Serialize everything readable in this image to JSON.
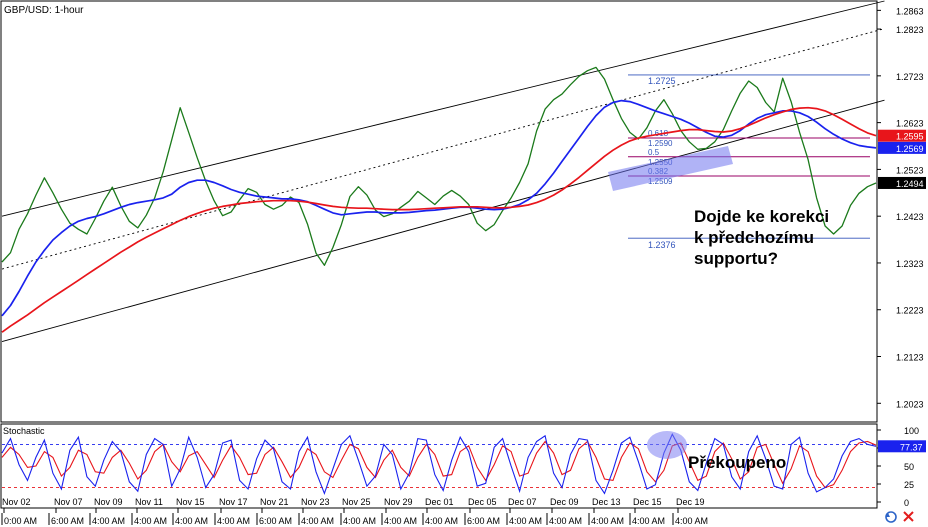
{
  "chart_data": {
    "type": "line",
    "title": "GBP/USD: 1-hour",
    "price_axis": {
      "ticks": [
        "1.2863",
        "1.2823",
        "1.2723",
        "1.2623",
        "1.2523",
        "1.2423",
        "1.2323",
        "1.2223",
        "1.2123",
        "1.2023"
      ],
      "ylim": [
        1.1983,
        1.2883
      ],
      "tags": [
        {
          "name": "ma-red",
          "value": "1.2595",
          "color": "#e8151b"
        },
        {
          "name": "ma-blue",
          "value": "1.2569",
          "color": "#1a22ee"
        },
        {
          "name": "last-price",
          "value": "1.2494",
          "color": "#000000"
        }
      ]
    },
    "series": [
      {
        "name": "price",
        "color": "#1b7a1b",
        "values": [
          1.2325,
          1.2345,
          1.2395,
          1.2428,
          1.2468,
          1.2505,
          1.2473,
          1.2438,
          1.2408,
          1.2395,
          1.2385,
          1.2418,
          1.2455,
          1.2485,
          1.2445,
          1.2412,
          1.2398,
          1.2425,
          1.2462,
          1.2518,
          1.2586,
          1.2655,
          1.2602,
          1.2548,
          1.2498,
          1.2456,
          1.2424,
          1.2432,
          1.2458,
          1.2482,
          1.2474,
          1.2448,
          1.2438,
          1.2446,
          1.2464,
          1.2452,
          1.2406,
          1.2344,
          1.2318,
          1.2356,
          1.2405,
          1.2465,
          1.2486,
          1.2468,
          1.2436,
          1.2422,
          1.2428,
          1.2442,
          1.2455,
          1.2476,
          1.2462,
          1.2448,
          1.2466,
          1.2478,
          1.2466,
          1.2448,
          1.2408,
          1.2392,
          1.2405,
          1.2435,
          1.2462,
          1.2495,
          1.2535,
          1.2605,
          1.2652,
          1.2672,
          1.2684,
          1.2704,
          1.2722,
          1.2734,
          1.2741,
          1.2716,
          1.2672,
          1.2632,
          1.2602,
          1.2588,
          1.2612,
          1.2648,
          1.2672,
          1.2642,
          1.2606,
          1.2582,
          1.2566,
          1.2568,
          1.2582,
          1.2608,
          1.2648,
          1.2686,
          1.2712,
          1.2698,
          1.2666,
          1.2646,
          1.2718,
          1.2668,
          1.2602,
          1.2544,
          1.2462,
          1.2402,
          1.2385,
          1.2402,
          1.2446,
          1.2472,
          1.2486,
          1.2494
        ]
      },
      {
        "name": "ma-blue",
        "color": "#1a22ee",
        "values": [
          1.221,
          1.2232,
          1.2262,
          1.2295,
          1.2325,
          1.235,
          1.2372,
          1.2388,
          1.2402,
          1.2412,
          1.2418,
          1.2422,
          1.2428,
          1.2435,
          1.2442,
          1.2448,
          1.2452,
          1.2455,
          1.2458,
          1.2462,
          1.247,
          1.2485,
          1.2495,
          1.25,
          1.25,
          1.2495,
          1.2488,
          1.248,
          1.2474,
          1.247,
          1.2466,
          1.2464,
          1.2462,
          1.246,
          1.246,
          1.2458,
          1.2454,
          1.2446,
          1.2438,
          1.243,
          1.2426,
          1.2428,
          1.243,
          1.2432,
          1.2432,
          1.243,
          1.243,
          1.243,
          1.2431,
          1.2433,
          1.2435,
          1.2436,
          1.2438,
          1.244,
          1.2442,
          1.2442,
          1.244,
          1.2438,
          1.2437,
          1.2438,
          1.2442,
          1.2448,
          1.2458,
          1.2472,
          1.2492,
          1.2515,
          1.254,
          1.2565,
          1.259,
          1.2615,
          1.2638,
          1.2656,
          1.2666,
          1.267,
          1.2668,
          1.2662,
          1.2655,
          1.2648,
          1.2642,
          1.2636,
          1.263,
          1.2622,
          1.2612,
          1.2602,
          1.2594,
          1.2592,
          1.2596,
          1.2606,
          1.262,
          1.2632,
          1.264,
          1.2644,
          1.2648,
          1.2648,
          1.2644,
          1.2636,
          1.2624,
          1.261,
          1.2598,
          1.2588,
          1.258,
          1.2574,
          1.2571,
          1.2569
        ]
      },
      {
        "name": "ma-red",
        "color": "#e8151b",
        "values": [
          1.2175,
          1.2188,
          1.22,
          1.2212,
          1.2225,
          1.2238,
          1.225,
          1.2262,
          1.2274,
          1.2286,
          1.2298,
          1.231,
          1.2322,
          1.2334,
          1.2346,
          1.2357,
          1.2368,
          1.2378,
          1.2387,
          1.2396,
          1.2405,
          1.2414,
          1.2422,
          1.2429,
          1.2435,
          1.244,
          1.2444,
          1.2447,
          1.245,
          1.2452,
          1.2454,
          1.2455,
          1.2456,
          1.2456,
          1.2456,
          1.2455,
          1.2453,
          1.245,
          1.2447,
          1.2444,
          1.2442,
          1.2441,
          1.244,
          1.244,
          1.2439,
          1.2438,
          1.2437,
          1.2437,
          1.2437,
          1.2438,
          1.2439,
          1.244,
          1.2441,
          1.2442,
          1.2443,
          1.2443,
          1.2443,
          1.2442,
          1.2441,
          1.2441,
          1.2442,
          1.2444,
          1.2447,
          1.2452,
          1.2459,
          1.2468,
          1.2479,
          1.2492,
          1.2506,
          1.2521,
          1.2536,
          1.2551,
          1.2564,
          1.2575,
          1.2584,
          1.259,
          1.2594,
          1.2597,
          1.26,
          1.2603,
          1.2606,
          1.2608,
          1.2608,
          1.2606,
          1.2604,
          1.2603,
          1.2605,
          1.261,
          1.2617,
          1.2625,
          1.2633,
          1.264,
          1.2646,
          1.2651,
          1.2654,
          1.2655,
          1.2653,
          1.2648,
          1.264,
          1.263,
          1.262,
          1.261,
          1.2601,
          1.2595
        ]
      }
    ],
    "channel": [
      {
        "name": "upper",
        "style": "solid",
        "points": [
          [
            0,
            1.2423
          ],
          [
            104,
            1.2883
          ]
        ]
      },
      {
        "name": "middle",
        "style": "dotted",
        "points": [
          [
            0,
            1.231
          ],
          [
            104,
            1.2824
          ]
        ]
      },
      {
        "name": "lower",
        "style": "solid",
        "points": [
          [
            0,
            1.2155
          ],
          [
            104,
            1.2671
          ]
        ]
      }
    ],
    "fibonacci": {
      "high_label": "1.2725",
      "low_label": "1.2376",
      "levels": [
        {
          "ratio": "0.618",
          "price_label": "1.2590",
          "value": 1.259
        },
        {
          "ratio": "0.5",
          "price_label": "1.2550",
          "value": 1.255
        },
        {
          "ratio": "0.382",
          "price_label": "1.2509",
          "value": 1.2509
        }
      ]
    },
    "x_axis": {
      "dates": [
        "Nov 02",
        "Nov 07",
        "Nov 09",
        "Nov 11",
        "Nov 15",
        "Nov 17",
        "Nov 21",
        "Nov 23",
        "Nov 25",
        "Nov 29",
        "Dec 01",
        "Dec 05",
        "Dec 07",
        "Dec 09",
        "Dec 13",
        "Dec 15",
        "Dec 19"
      ],
      "times": [
        "0:00 AM",
        "6:00 AM",
        "4:00 AM",
        "4:00 AM",
        "4:00 AM",
        "4:00 AM",
        "6:00 AM",
        "4:00 AM",
        "4:00 AM",
        "4:00 AM",
        "4:00 AM",
        "6:00 AM",
        "4:00 AM",
        "4:00 AM",
        "4:00 AM",
        "4:00 AM",
        "4:00 AM"
      ]
    },
    "annotations": {
      "main": "Dojde ke korekci\nk předchozímu\nsupportu?",
      "oscillator": "Překoupeno"
    },
    "stochastic": {
      "title": "Stochastic",
      "ticks": [
        "100",
        "75",
        "50",
        "25",
        "0"
      ],
      "levels": [
        80,
        20
      ],
      "tag": "77.37",
      "ylim": [
        0,
        100
      ],
      "k_values": [
        68,
        88,
        52,
        30,
        62,
        86,
        40,
        18,
        72,
        90,
        35,
        22,
        58,
        84,
        70,
        28,
        15,
        66,
        88,
        80,
        22,
        46,
        90,
        62,
        20,
        38,
        82,
        86,
        30,
        18,
        60,
        86,
        74,
        28,
        18,
        70,
        90,
        42,
        12,
        46,
        80,
        92,
        58,
        22,
        36,
        80,
        66,
        18,
        40,
        88,
        86,
        38,
        16,
        58,
        90,
        70,
        22,
        26,
        76,
        88,
        50,
        15,
        62,
        84,
        92,
        40,
        20,
        66,
        88,
        86,
        30,
        12,
        44,
        82,
        90,
        56,
        18,
        24,
        68,
        94,
        72,
        28,
        16,
        54,
        88,
        80,
        35,
        18,
        70,
        92,
        60,
        22,
        18,
        80,
        90,
        40,
        14,
        20,
        32,
        64,
        84,
        88,
        80,
        77.37
      ],
      "d_values": [
        62,
        76,
        66,
        48,
        50,
        70,
        62,
        36,
        48,
        72,
        66,
        42,
        40,
        62,
        72,
        54,
        32,
        44,
        70,
        80,
        56,
        42,
        64,
        70,
        52,
        34,
        58,
        78,
        62,
        38,
        40,
        66,
        76,
        56,
        34,
        48,
        74,
        66,
        42,
        34,
        58,
        80,
        74,
        48,
        34,
        58,
        72,
        48,
        36,
        62,
        80,
        66,
        36,
        38,
        70,
        78,
        48,
        30,
        52,
        78,
        70,
        36,
        40,
        68,
        84,
        68,
        38,
        44,
        74,
        84,
        62,
        32,
        30,
        62,
        82,
        74,
        42,
        28,
        44,
        78,
        82,
        56,
        30,
        36,
        70,
        82,
        60,
        32,
        42,
        76,
        80,
        52,
        26,
        46,
        78,
        70,
        36,
        20,
        24,
        44,
        70,
        82,
        84,
        79
      ]
    }
  }
}
